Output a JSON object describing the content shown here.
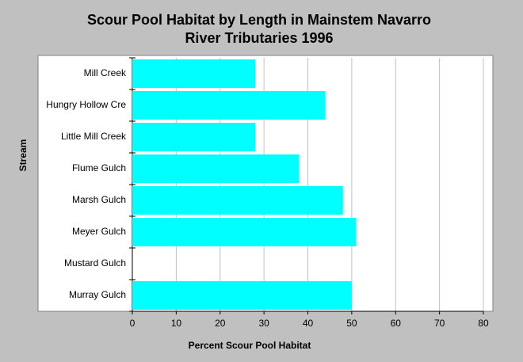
{
  "chart_data": {
    "type": "barh",
    "title": [
      "Scour Pool Habitat by Length in Mainstem Navarro",
      "River Tributaries 1996"
    ],
    "xlabel": "Percent Scour Pool Habitat",
    "ylabel": "Stream",
    "categories": [
      "Mill Creek",
      "Hungry Hollow Cre",
      "Little Mill Creek",
      "Flume Gulch",
      "Marsh Gulch",
      "Meyer Gulch",
      "Mustard Gulch",
      "Murray Gulch"
    ],
    "values": [
      28,
      44,
      28,
      38,
      48,
      51,
      null,
      50
    ],
    "color": "#00ffff",
    "xlim": [
      0,
      80
    ],
    "xticks": [
      0,
      10,
      20,
      30,
      40,
      50,
      60,
      70,
      80
    ],
    "grid": true
  }
}
